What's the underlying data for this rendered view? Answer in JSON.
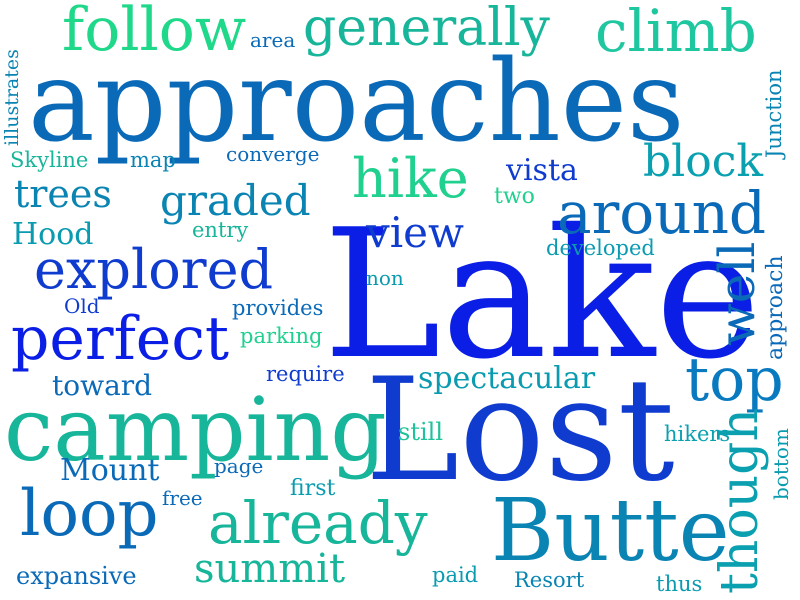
{
  "words": {
    "lake": "Lake",
    "lost": "Lost",
    "approaches": "approaches",
    "camping": "camping",
    "butte": "Butte",
    "perfect": "perfect",
    "explored": "explored",
    "around": "around",
    "follow": "follow",
    "generally": "generally",
    "climb": "climb",
    "hike": "hike",
    "loop": "loop",
    "already": "already",
    "top": "top",
    "though": "though",
    "well": "well",
    "block": "block",
    "view": "view",
    "graded": "graded",
    "trees": "trees",
    "summit": "summit",
    "spectacular": "spectacular",
    "mount": "Mount",
    "hood": "Hood",
    "toward": "toward",
    "vista": "vista",
    "expansive": "expansive",
    "illustrates": "illustrates",
    "junction": "Junction",
    "approach": "approach",
    "bottom": "bottom",
    "area": "area",
    "skyline": "Skyline",
    "map": "map",
    "converge": "converge",
    "two": "two",
    "entry": "entry",
    "developed": "developed",
    "non": "non",
    "old": "Old",
    "provides": "provides",
    "parking": "parking",
    "require": "require",
    "still": "still",
    "hikers": "hikers",
    "page": "page",
    "first": "first",
    "free": "free",
    "paid": "paid",
    "resort": "Resort",
    "thus": "thus"
  },
  "colors": {
    "deep_blue": "#0a1ee6",
    "royal_blue": "#0f3ccf",
    "ocean_blue": "#0a6ab8",
    "teal": "#0a9bb0",
    "sea_green": "#17b59a",
    "spring_green": "#1fd88a"
  }
}
